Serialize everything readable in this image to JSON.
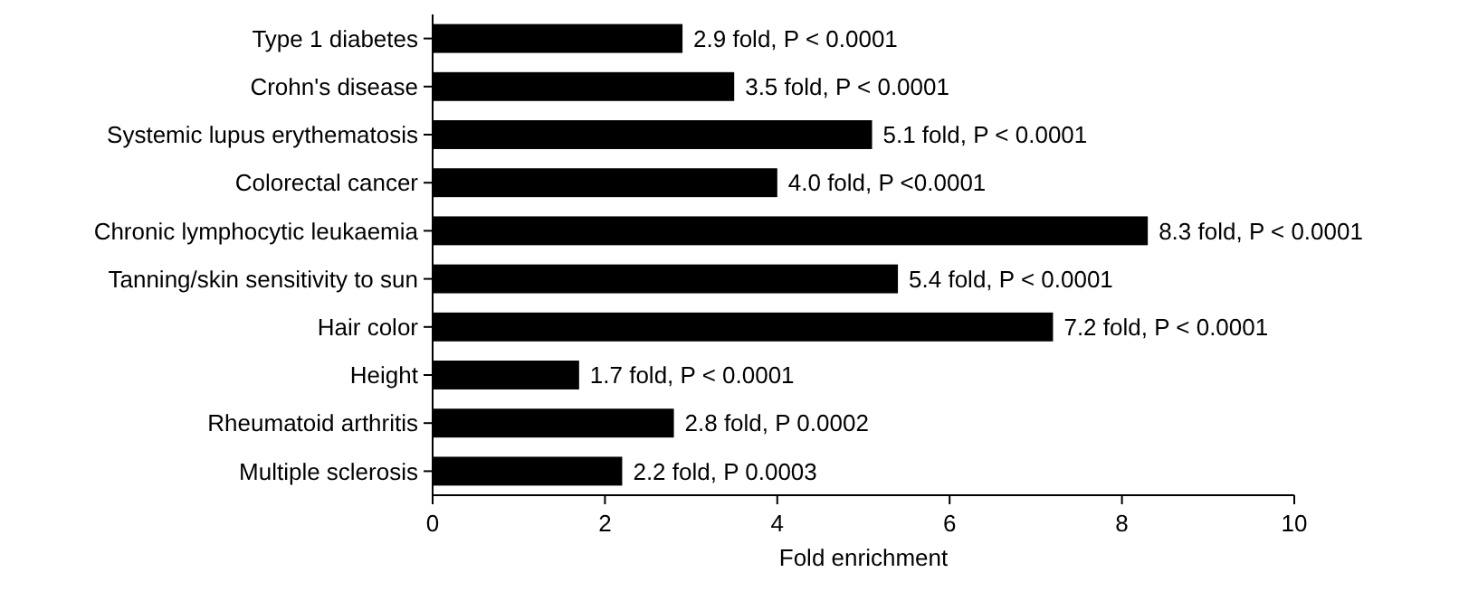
{
  "chart_data": {
    "type": "bar",
    "orientation": "horizontal",
    "xlabel": "Fold enrichment",
    "categories": [
      "Type 1 diabetes",
      "Crohn's disease",
      "Systemic lupus erythematosis",
      "Colorectal cancer",
      "Chronic lymphocytic leukaemia",
      "Tanning/skin sensitivity to sun",
      "Hair color",
      "Height",
      "Rheumatoid arthritis",
      "Multiple sclerosis"
    ],
    "values": [
      2.9,
      3.5,
      5.1,
      4.0,
      8.3,
      5.4,
      7.2,
      1.7,
      2.8,
      2.2
    ],
    "value_labels": [
      "2.9 fold, P < 0.0001",
      "3.5 fold, P < 0.0001",
      "5.1 fold, P < 0.0001",
      "4.0 fold, P <0.0001",
      "8.3 fold, P < 0.0001",
      "5.4 fold, P < 0.0001",
      "7.2 fold, P < 0.0001",
      "1.7 fold, P < 0.0001",
      "2.8 fold, P 0.0002",
      "2.2 fold, P  0.0003"
    ],
    "color": "#000000",
    "xlim": [
      0,
      10
    ],
    "xticks": [
      0,
      2,
      4,
      6,
      8,
      10
    ],
    "grid": false
  }
}
